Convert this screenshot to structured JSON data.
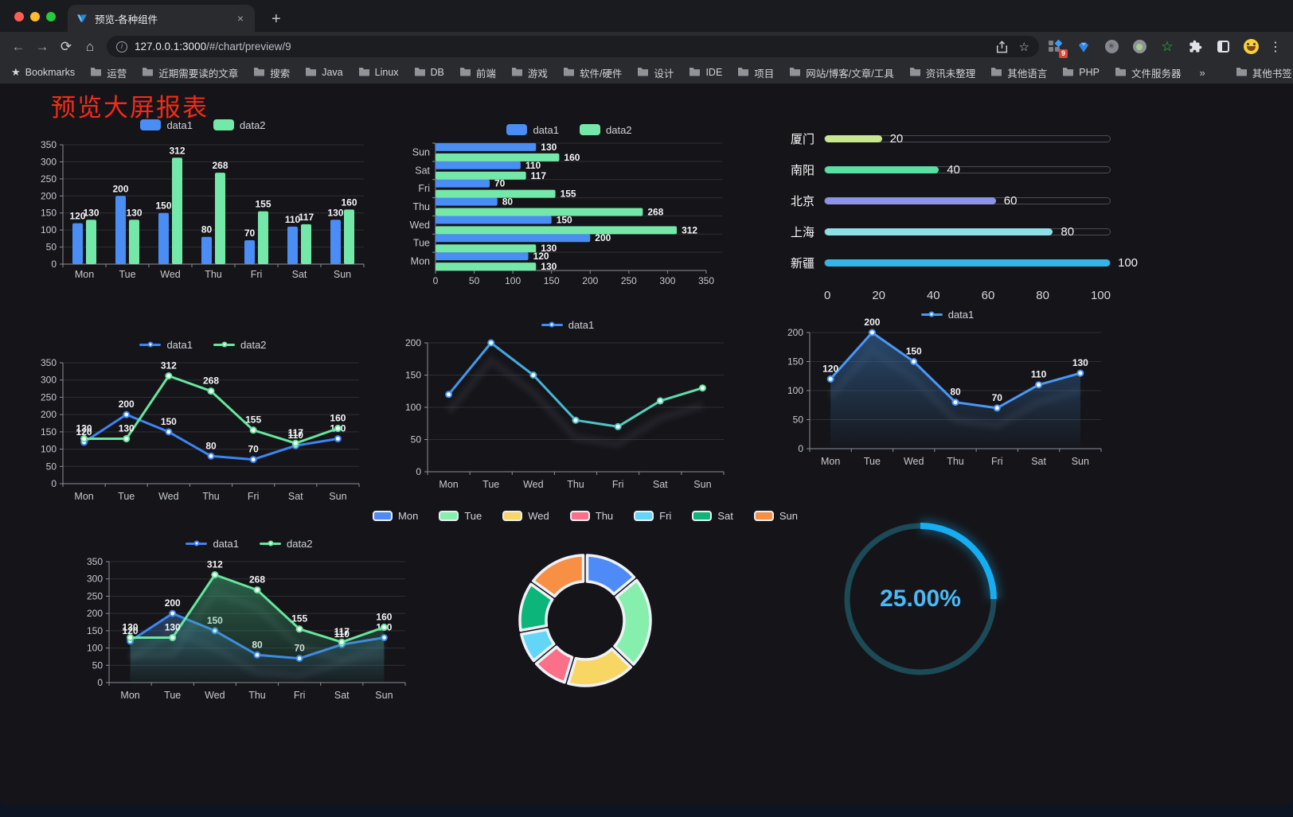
{
  "browser": {
    "tab": {
      "title": "预览-各种组件",
      "close_glyph": "×",
      "new_tab_glyph": "+"
    },
    "icons": {
      "back": "←",
      "forward": "→",
      "reload": "⟳",
      "home": "⌂",
      "info": "i",
      "share": "⇧",
      "star_outline": "☆",
      "green_star": "☆",
      "asterisk": "✳",
      "kebab": "⋮",
      "bookmark_star": "★"
    },
    "omnibox": {
      "host": "127.0.0.1:3000",
      "path": "/#/chart/preview/9"
    },
    "extensions_badge": "9",
    "bookmarks_bar": {
      "root_label": "Bookmarks",
      "folders": [
        "运营",
        "近期需要读的文章",
        "搜索",
        "Java",
        "Linux",
        "DB",
        "前端",
        "游戏",
        "软件/硬件",
        "设计",
        "IDE",
        "项目",
        "网站/博客/文章/工具",
        "资讯未整理",
        "其他语言",
        "PHP",
        "文件服务器"
      ],
      "overflow": "»",
      "other": "其他书签"
    }
  },
  "page": {
    "title": "预览大屏报表",
    "title_color": "#f52b17",
    "background": "#151519"
  },
  "chart_data": [
    {
      "id": "c1",
      "type": "bar",
      "legend_position": "top",
      "grid": true,
      "categories": [
        "Mon",
        "Tue",
        "Wed",
        "Thu",
        "Fri",
        "Sat",
        "Sun"
      ],
      "series": [
        {
          "name": "data1",
          "color": "#4a8df5",
          "values": [
            120,
            200,
            150,
            80,
            70,
            110,
            130
          ]
        },
        {
          "name": "data2",
          "color": "#74e8a8",
          "values": [
            130,
            130,
            312,
            268,
            155,
            117,
            160
          ]
        }
      ],
      "ylim": [
        0,
        350
      ],
      "ytick": 50,
      "value_labels": true
    },
    {
      "id": "c2",
      "type": "bar",
      "orientation": "horizontal",
      "legend_position": "top",
      "categories": [
        "Mon",
        "Tue",
        "Wed",
        "Thu",
        "Fri",
        "Sat",
        "Sun"
      ],
      "series": [
        {
          "name": "data1",
          "color": "#4a8df5",
          "values": [
            120,
            200,
            150,
            80,
            70,
            110,
            130
          ]
        },
        {
          "name": "data2",
          "color": "#74e8a8",
          "values": [
            130,
            130,
            312,
            268,
            155,
            117,
            160
          ]
        }
      ],
      "xlim": [
        0,
        350
      ],
      "xtick": 50,
      "value_labels": true
    },
    {
      "id": "c3",
      "type": "bar",
      "subtype": "progress",
      "categories": [
        "厦门",
        "南阳",
        "北京",
        "上海",
        "新疆"
      ],
      "values": [
        20,
        40,
        60,
        80,
        100
      ],
      "colors": [
        "#cbe690",
        "#58dfa2",
        "#8c94e6",
        "#8ce1e6",
        "#38b3e8"
      ],
      "xlim": [
        0,
        100
      ],
      "xticks": [
        0,
        20,
        40,
        60,
        80,
        100
      ]
    },
    {
      "id": "c4",
      "type": "line",
      "legend_position": "top",
      "categories": [
        "Mon",
        "Tue",
        "Wed",
        "Thu",
        "Fri",
        "Sat",
        "Sun"
      ],
      "series": [
        {
          "name": "data1",
          "color": "#3d84f5",
          "values": [
            120,
            200,
            150,
            80,
            70,
            110,
            130
          ]
        },
        {
          "name": "data2",
          "color": "#67e69c",
          "values": [
            130,
            130,
            312,
            268,
            155,
            117,
            160
          ]
        }
      ],
      "ylim": [
        0,
        350
      ],
      "ytick": 50,
      "value_labels": true
    },
    {
      "id": "c5",
      "type": "line",
      "legend_position": "top",
      "ghost_shadow": true,
      "categories": [
        "Mon",
        "Tue",
        "Wed",
        "Thu",
        "Fri",
        "Sat",
        "Sun"
      ],
      "series": [
        {
          "name": "data1",
          "color": "#3f8df5",
          "gradient": [
            "#3f8df5",
            "#49bcd0",
            "#68e89e"
          ],
          "values": [
            120,
            200,
            150,
            80,
            70,
            110,
            130
          ]
        }
      ],
      "ylim": [
        0,
        200
      ],
      "ytick": 50,
      "value_labels": false
    },
    {
      "id": "c6",
      "type": "area",
      "legend_position": "top",
      "ghost_shadow": true,
      "categories": [
        "Mon",
        "Tue",
        "Wed",
        "Thu",
        "Fri",
        "Sat",
        "Sun"
      ],
      "series": [
        {
          "name": "data1",
          "color": "#4a97f7",
          "fill": [
            "rgba(54,108,166,0.60)",
            "rgba(54,108,166,0.03)"
          ],
          "values": [
            120,
            200,
            150,
            80,
            70,
            110,
            130
          ]
        }
      ],
      "ylim": [
        0,
        200
      ],
      "ytick": 50,
      "value_labels": true
    },
    {
      "id": "c7",
      "type": "area",
      "legend_position": "top",
      "ghost_shadow": true,
      "categories": [
        "Mon",
        "Tue",
        "Wed",
        "Thu",
        "Fri",
        "Sat",
        "Sun"
      ],
      "series": [
        {
          "name": "data1",
          "color": "#3d84f5",
          "fill": [
            "rgba(58,110,165,0.50)",
            "rgba(58,110,165,0.03)"
          ],
          "values": [
            120,
            200,
            150,
            80,
            70,
            110,
            130
          ]
        },
        {
          "name": "data2",
          "color": "#67e69c",
          "fill": [
            "rgba(63,174,122,0.50)",
            "rgba(63,174,122,0.03)"
          ],
          "values": [
            130,
            130,
            312,
            268,
            155,
            117,
            160
          ]
        }
      ],
      "ylim": [
        0,
        350
      ],
      "ytick": 50,
      "value_labels": true
    },
    {
      "id": "c8",
      "type": "pie",
      "legend_position": "top",
      "donut": true,
      "categories": [
        "Mon",
        "Tue",
        "Wed",
        "Thu",
        "Fri",
        "Sat",
        "Sun"
      ],
      "values": [
        120,
        200,
        150,
        80,
        70,
        110,
        130
      ],
      "colors": [
        "#4e8bf7",
        "#86efad",
        "#f7d664",
        "#fb7088",
        "#63d6f7",
        "#0cb579",
        "#f78f45"
      ],
      "inner_radius": 49,
      "outer_radius": 82,
      "border_color": "#eef2f8"
    },
    {
      "id": "c9",
      "type": "gauge",
      "value": 25,
      "label": "25.00%",
      "color": "#16aef2",
      "track_color": "#1c4a57",
      "text_color": "#4cb9f7"
    }
  ]
}
